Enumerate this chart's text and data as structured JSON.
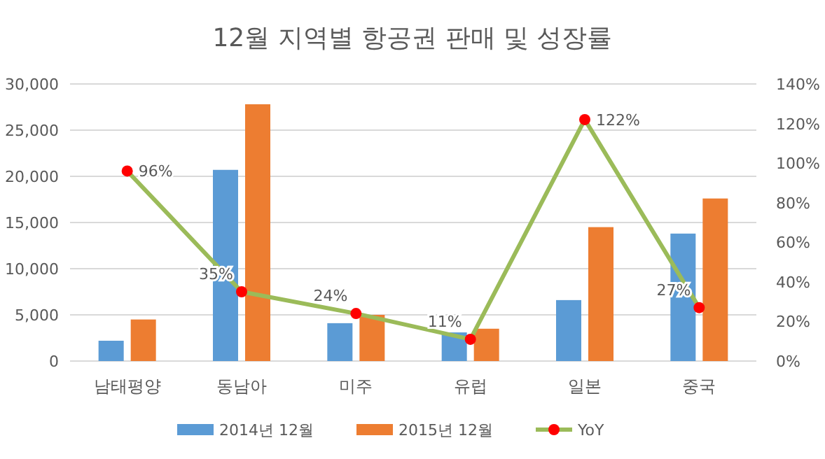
{
  "chart_data": {
    "type": "bar",
    "title": "12월 지역별 항공권 판매 및 성장률",
    "categories": [
      "남태평양",
      "동남아",
      "미주",
      "유럽",
      "일본",
      "중국"
    ],
    "series": [
      {
        "name": "2014년 12월",
        "color": "#5b9bd5",
        "values": [
          2200,
          20700,
          4100,
          3100,
          6600,
          13800
        ]
      },
      {
        "name": "2015년 12월",
        "color": "#ed7d31",
        "values": [
          4500,
          27800,
          5000,
          3500,
          14500,
          17600
        ]
      },
      {
        "name": "YoY",
        "type": "line",
        "axis": "y2",
        "color": "#9bbb59",
        "colors": [
          "#ff0000",
          "#ff0000",
          "#ff0000",
          "#ff0000",
          "#ff0000",
          "#ff0000"
        ],
        "marker": "circle",
        "values": [
          96,
          35,
          24,
          11,
          122,
          27
        ],
        "value_labels": [
          "96%",
          "35%",
          "24%",
          "11%",
          "122%",
          "27%"
        ]
      }
    ],
    "ylim": [
      0,
      30000
    ],
    "yticks": [
      {
        "value": 0,
        "label": "0"
      },
      {
        "value": 5000,
        "label": "5,000"
      },
      {
        "value": 10000,
        "label": "10,000"
      },
      {
        "value": 15000,
        "label": "15,000"
      },
      {
        "value": 20000,
        "label": "20,000"
      },
      {
        "value": 25000,
        "label": "25,000"
      },
      {
        "value": 30000,
        "label": "30,000"
      }
    ],
    "y2lim": [
      0,
      140
    ],
    "y2ticks": [
      {
        "value": 0,
        "label": "0%"
      },
      {
        "value": 20,
        "label": "20%"
      },
      {
        "value": 40,
        "label": "40%"
      },
      {
        "value": 60,
        "label": "60%"
      },
      {
        "value": 80,
        "label": "80%"
      },
      {
        "value": 100,
        "label": "100%"
      },
      {
        "value": 120,
        "label": "120%"
      },
      {
        "value": 140,
        "label": "140%"
      }
    ],
    "grid": "y",
    "legend": "bottom"
  }
}
